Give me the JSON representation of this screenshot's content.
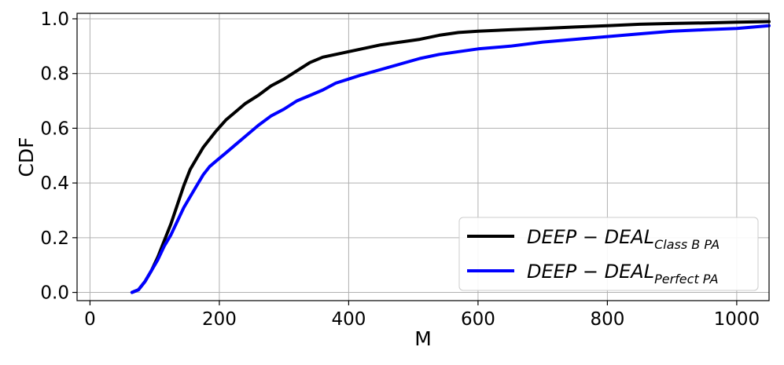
{
  "chart_data": {
    "type": "line",
    "xlabel": "M",
    "ylabel": "CDF",
    "xlim": [
      -20,
      1050
    ],
    "ylim": [
      -0.03,
      1.02
    ],
    "xticks": [
      0,
      200,
      400,
      600,
      800,
      1000
    ],
    "yticks": [
      0.0,
      0.2,
      0.4,
      0.6,
      0.8,
      1.0
    ],
    "xtick_labels": [
      "0",
      "200",
      "400",
      "600",
      "800",
      "1000"
    ],
    "ytick_labels": [
      "0.0",
      "0.2",
      "0.4",
      "0.6",
      "0.8",
      "1.0"
    ],
    "grid": true,
    "legend_position": "lower-right",
    "series": [
      {
        "name_main": "DEEP − DEAL",
        "name_sub": "Class B PA",
        "color": "#000000",
        "x": [
          65,
          75,
          85,
          95,
          105,
          115,
          125,
          135,
          145,
          155,
          165,
          175,
          185,
          195,
          210,
          225,
          240,
          260,
          280,
          300,
          320,
          340,
          360,
          380,
          400,
          420,
          450,
          480,
          510,
          540,
          570,
          600,
          650,
          700,
          750,
          800,
          850,
          900,
          950,
          1000,
          1050
        ],
        "y": [
          0.0,
          0.01,
          0.04,
          0.08,
          0.13,
          0.19,
          0.25,
          0.32,
          0.39,
          0.45,
          0.49,
          0.53,
          0.56,
          0.59,
          0.63,
          0.66,
          0.69,
          0.72,
          0.755,
          0.78,
          0.81,
          0.84,
          0.86,
          0.87,
          0.88,
          0.89,
          0.905,
          0.915,
          0.925,
          0.94,
          0.95,
          0.955,
          0.96,
          0.965,
          0.97,
          0.975,
          0.98,
          0.983,
          0.985,
          0.988,
          0.99
        ]
      },
      {
        "name_main": "DEEP − DEAL",
        "name_sub": "Perfect PA",
        "color": "#0000ff",
        "x": [
          65,
          75,
          85,
          95,
          105,
          115,
          125,
          135,
          145,
          155,
          165,
          175,
          185,
          195,
          210,
          225,
          240,
          260,
          280,
          300,
          320,
          340,
          360,
          380,
          400,
          420,
          450,
          480,
          510,
          540,
          570,
          600,
          650,
          700,
          750,
          800,
          850,
          900,
          950,
          1000,
          1050
        ],
        "y": [
          0.0,
          0.01,
          0.04,
          0.08,
          0.12,
          0.17,
          0.21,
          0.26,
          0.31,
          0.35,
          0.39,
          0.43,
          0.46,
          0.48,
          0.51,
          0.54,
          0.57,
          0.61,
          0.645,
          0.67,
          0.7,
          0.72,
          0.74,
          0.765,
          0.78,
          0.795,
          0.815,
          0.835,
          0.855,
          0.87,
          0.88,
          0.89,
          0.9,
          0.915,
          0.925,
          0.935,
          0.945,
          0.955,
          0.96,
          0.965,
          0.975
        ]
      }
    ]
  }
}
